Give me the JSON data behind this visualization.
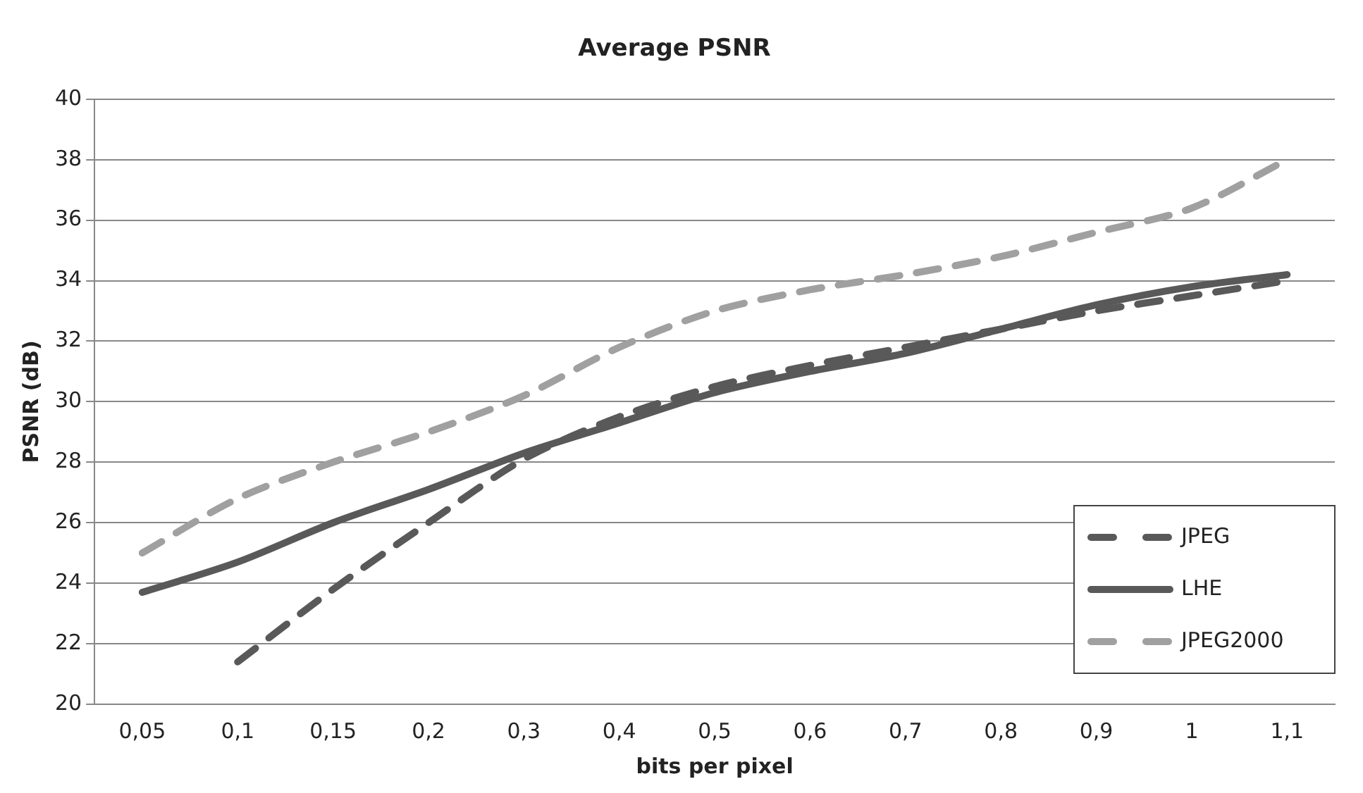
{
  "chart_data": {
    "type": "line",
    "title": "Average PSNR",
    "xlabel": "bits per pixel",
    "ylabel": "PSNR (dB)",
    "categories": [
      "0,05",
      "0,1",
      "0,15",
      "0,2",
      "0,3",
      "0,4",
      "0,5",
      "0,6",
      "0,7",
      "0,8",
      "0,9",
      "1",
      "1,1"
    ],
    "series": [
      {
        "name": "JPEG",
        "color": "#595959",
        "line_style": "dashed",
        "values": [
          null,
          21.4,
          23.8,
          26,
          28.1,
          29.5,
          30.5,
          31.2,
          31.8,
          32.4,
          33,
          33.5,
          34
        ]
      },
      {
        "name": "LHE",
        "color": "#595959",
        "line_style": "solid",
        "values": [
          23.7,
          24.7,
          26,
          27.1,
          28.3,
          29.3,
          30.3,
          31,
          31.6,
          32.4,
          33.2,
          33.8,
          34.2
        ]
      },
      {
        "name": "JPEG2000",
        "color": "#a0a0a0",
        "line_style": "dashed",
        "values": [
          25,
          26.8,
          28,
          29,
          30.2,
          31.8,
          33,
          33.7,
          34.2,
          34.8,
          35.6,
          36.4,
          38
        ]
      }
    ],
    "ylim": [
      20,
      40
    ],
    "yticks": [
      20,
      22,
      24,
      26,
      28,
      30,
      32,
      34,
      36,
      38,
      40
    ],
    "grid": "y",
    "legend": "bottom right",
    "marker": "none"
  }
}
